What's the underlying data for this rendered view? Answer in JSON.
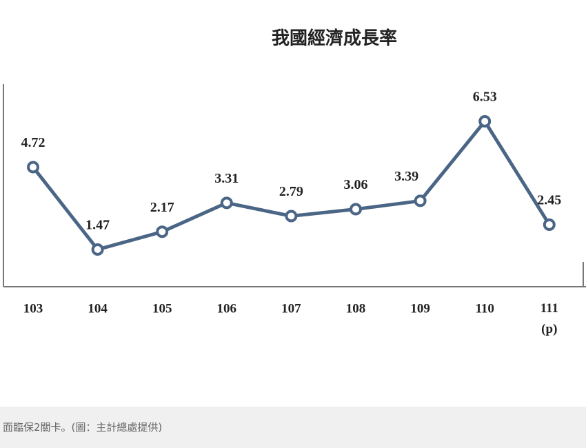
{
  "chart_data": {
    "type": "line",
    "title": "我國經濟成長率",
    "categories": [
      "103",
      "104",
      "105",
      "106",
      "107",
      "108",
      "109",
      "110",
      "111 (p)"
    ],
    "values": [
      4.72,
      1.47,
      2.17,
      3.31,
      2.79,
      3.06,
      3.39,
      6.53,
      2.45
    ],
    "color": "#4a6585",
    "ylim": [
      0,
      8
    ]
  },
  "caption": "面臨保2關卡。(圖：主計總處提供)"
}
